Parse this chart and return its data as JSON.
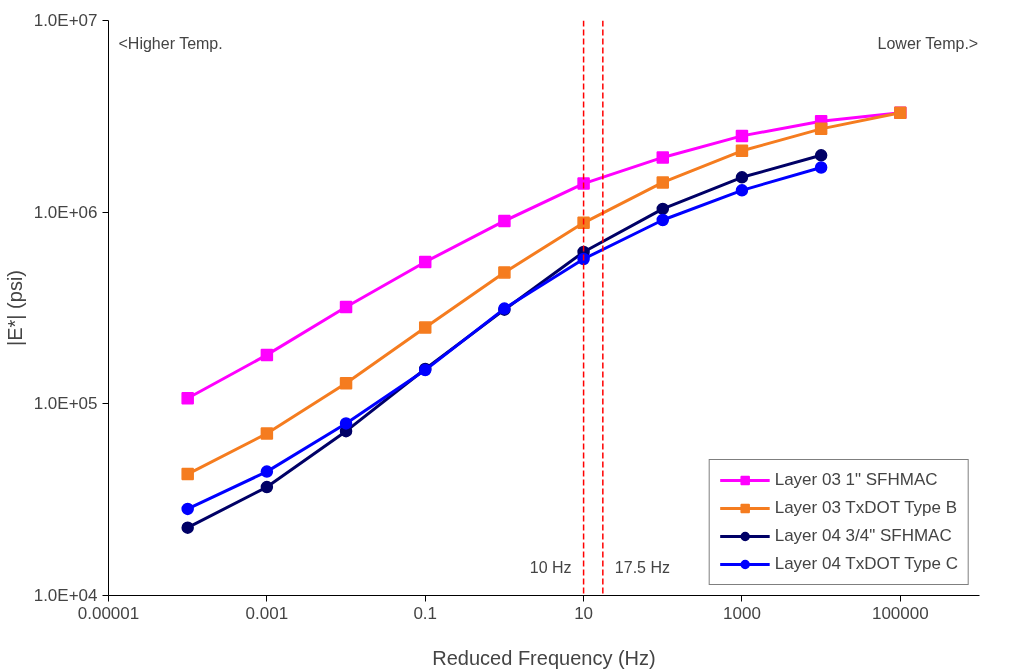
{
  "chart_data": {
    "type": "line",
    "xlabel": "Reduced Frequency (Hz)",
    "ylabel": "|E*| (psi)",
    "log": "xy",
    "grid": false,
    "legend": "bottom right",
    "line_style": "solid",
    "x": [
      0.0001,
      0.001,
      0.01,
      0.1,
      1,
      10,
      100,
      1000,
      10000,
      100000
    ],
    "xlim": [
      1e-05,
      1000000
    ],
    "xticks": [
      {
        "value": 1e-05,
        "label": "0.00001"
      },
      0.001,
      0.1,
      10,
      1000,
      100000
    ],
    "ylim": [
      10000,
      10000000
    ],
    "yticks": [
      {
        "value": 10000,
        "label": "1.0E+04"
      },
      {
        "value": 100000,
        "label": "1.0E+05"
      },
      {
        "value": 1000000,
        "label": "1.0E+06"
      },
      {
        "value": 10000000,
        "label": "1.0E+07"
      }
    ],
    "series": [
      {
        "name": "Layer 03 1\" SFHMAC",
        "color": "#ff00ff",
        "marker": "square",
        "values": [
          107000,
          180000,
          320000,
          550000,
          900000,
          1410000,
          1930000,
          2500000,
          2980000,
          3300000
        ]
      },
      {
        "name": "Layer 03 TxDOT Type B",
        "color": "#f57c1f",
        "marker": "square",
        "values": [
          43000,
          70000,
          128000,
          250000,
          485000,
          880000,
          1430000,
          2090000,
          2720000,
          3300000
        ]
      },
      {
        "name": "Layer 04 3/4\" SFHMAC",
        "color": "#000066",
        "marker": "circle",
        "values": [
          22600,
          36800,
          72000,
          152000,
          310000,
          620000,
          1040000,
          1520000,
          1980000,
          null
        ]
      },
      {
        "name": "Layer 04 TxDOT Type C",
        "color": "#0000ff",
        "marker": "circle",
        "values": [
          28300,
          44300,
          79000,
          150000,
          314000,
          570000,
          910000,
          1300000,
          1710000,
          null
        ]
      }
    ],
    "ref_lines": [
      {
        "axis": "x",
        "value": 10,
        "label": "10 Hz",
        "color": "#ff0000",
        "line_style": "dashed"
      },
      {
        "axis": "x",
        "value": 17.5,
        "label": "17.5 Hz",
        "color": "#ff0000",
        "line_style": "dashed"
      }
    ],
    "annotations": [
      "<Higher Temp.",
      "Lower Temp.>"
    ]
  }
}
